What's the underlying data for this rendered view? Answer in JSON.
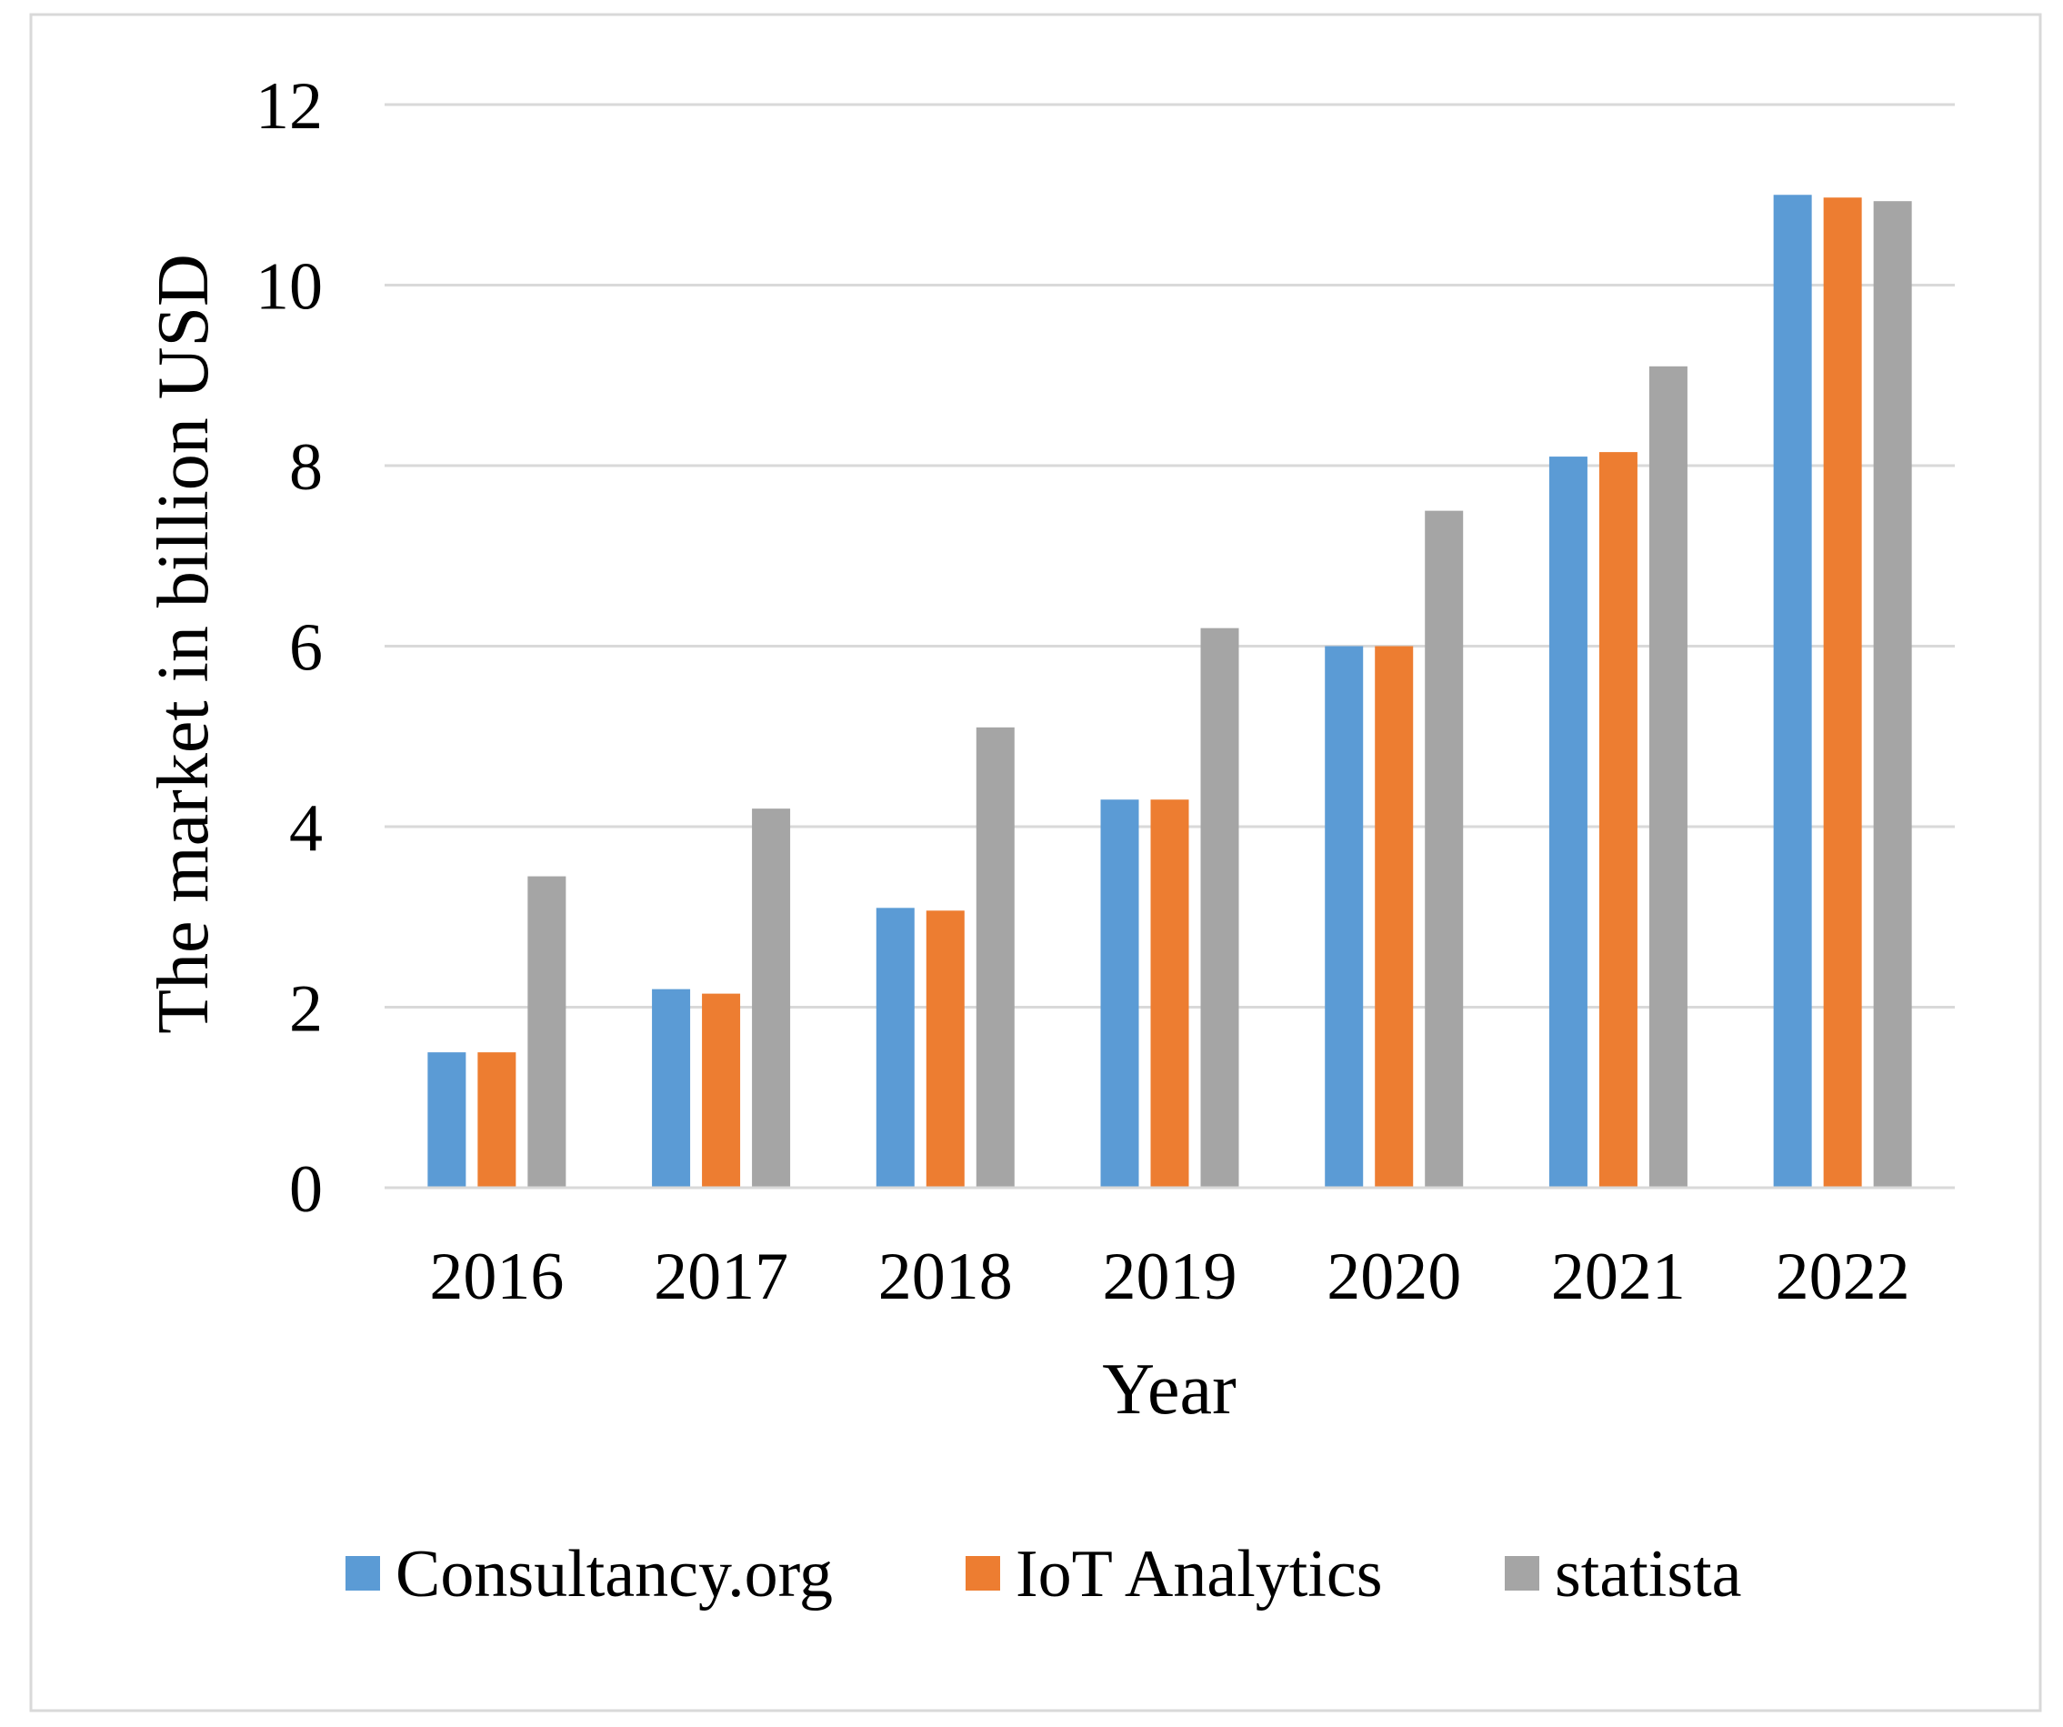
{
  "chart_data": {
    "type": "bar",
    "title": "",
    "xlabel": "Year",
    "ylabel": "The  market in billion USD",
    "ylim": [
      0,
      12
    ],
    "yticks": [
      "0",
      "2",
      "4",
      "6",
      "8",
      "10",
      "12"
    ],
    "grid": true,
    "legend_position": "bottom",
    "categories": [
      "2016",
      "2017",
      "2018",
      "2019",
      "2020",
      "2021",
      "2022"
    ],
    "series": [
      {
        "name": "Consultancy.org",
        "color": "#5b9bd5",
        "values": [
          1.5,
          2.2,
          3.1,
          4.3,
          6.0,
          8.1,
          11.0
        ]
      },
      {
        "name": "IoT Analytics",
        "color": "#ed7d31",
        "values": [
          1.5,
          2.15,
          3.07,
          4.3,
          6.0,
          8.15,
          10.97
        ]
      },
      {
        "name": "statista",
        "color": "#a5a5a5",
        "values": [
          3.45,
          4.2,
          5.1,
          6.2,
          7.5,
          9.1,
          10.93
        ]
      }
    ]
  }
}
